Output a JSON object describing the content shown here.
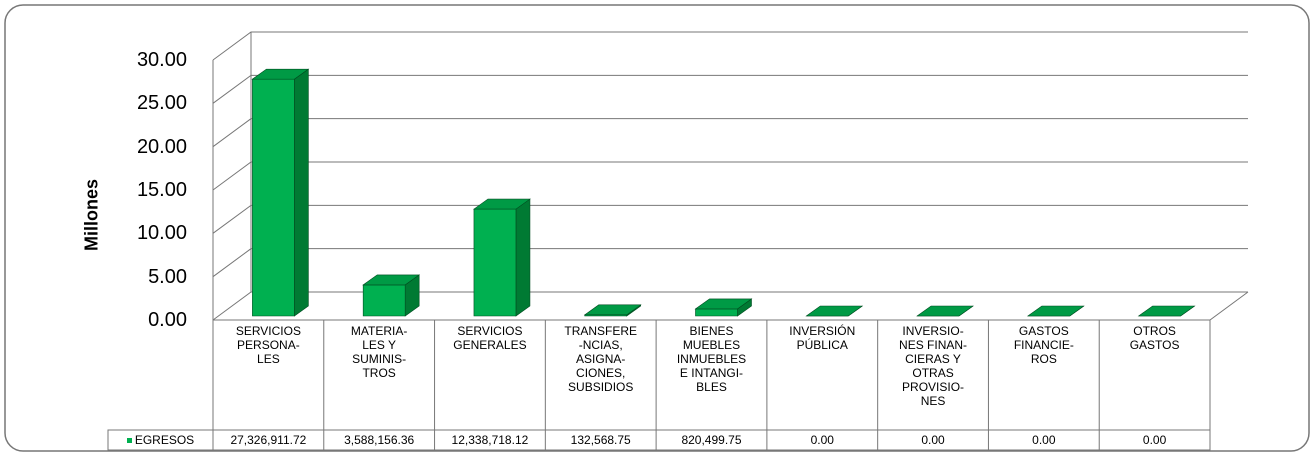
{
  "chart_data": {
    "type": "bar3d",
    "y_label": "Millones",
    "categories": [
      "SERVICIOS\nPERSONA-\nLES",
      "MATERIA-\nLES Y\nSUMINIS-\nTROS",
      "SERVICIOS\nGENERALES",
      "TRANSFERE\n-NCIAS,\nASIGNA-\nCIONES,\nSUBSIDIOS",
      "BIENES\nMUEBLES\nINMUEBLES\nE INTANGI-\nBLES",
      "INVERSIÓN\nPÚBLICA",
      "INVERSIO-\nNES FINAN-\nCIERAS Y\nOTRAS\nPROVISIO-\nNES",
      "GASTOS\nFINANCIE-\nROS",
      "OTROS\nGASTOS"
    ],
    "series": [
      {
        "name": "EGRESOS",
        "color": "#00b050",
        "values": [
          27.32691172,
          3.58815636,
          12.33871812,
          0.13256875,
          0.82049975,
          0,
          0,
          0,
          0
        ],
        "value_labels": [
          "27,326,911.72",
          "3,588,156.36",
          "12,338,718.12",
          "132,568.75",
          "820,499.75",
          "0.00",
          "0.00",
          "0.00",
          "0.00"
        ]
      }
    ],
    "ylim": [
      0,
      30
    ],
    "yticks": [
      {
        "value": 0,
        "label": "0.00"
      },
      {
        "value": 5,
        "label": "5.00"
      },
      {
        "value": 10,
        "label": "10.00"
      },
      {
        "value": 15,
        "label": "15.00"
      },
      {
        "value": 20,
        "label": "20.00"
      },
      {
        "value": 25,
        "label": "25.00"
      },
      {
        "value": 30,
        "label": "30.00"
      }
    ],
    "grid": true
  }
}
